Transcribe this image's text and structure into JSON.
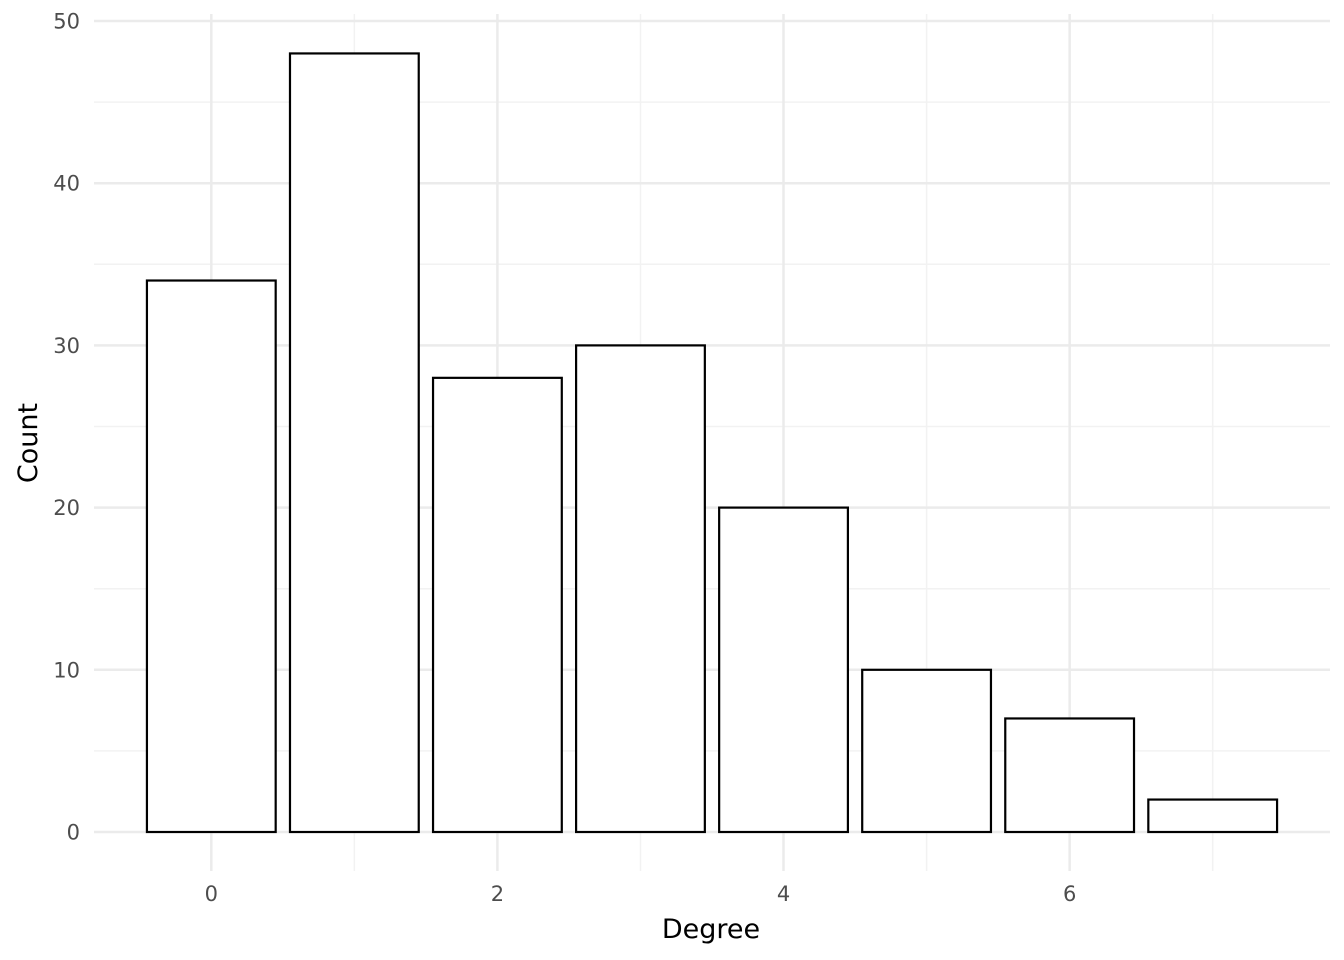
{
  "chart_data": {
    "type": "bar",
    "title": "",
    "xlabel": "Degree",
    "ylabel": "Count",
    "categories": [
      0,
      1,
      2,
      3,
      4,
      5,
      6,
      7
    ],
    "values": [
      34,
      48,
      28,
      30,
      20,
      10,
      7,
      2
    ],
    "xlim": [
      -0.82,
      7.82
    ],
    "ylim": [
      0,
      50
    ],
    "x_ticks": [
      0,
      2,
      4,
      6
    ],
    "y_ticks": [
      0,
      10,
      20,
      30,
      40,
      50
    ],
    "grid": true,
    "legend": "none",
    "colors": {
      "bar_fill": "#ffffff",
      "bar_stroke": "#000000",
      "grid_major": "#ebebeb",
      "grid_minor": "#f2f2f2",
      "tick_text": "#4d4d4d",
      "axis_title": "#000000"
    }
  }
}
